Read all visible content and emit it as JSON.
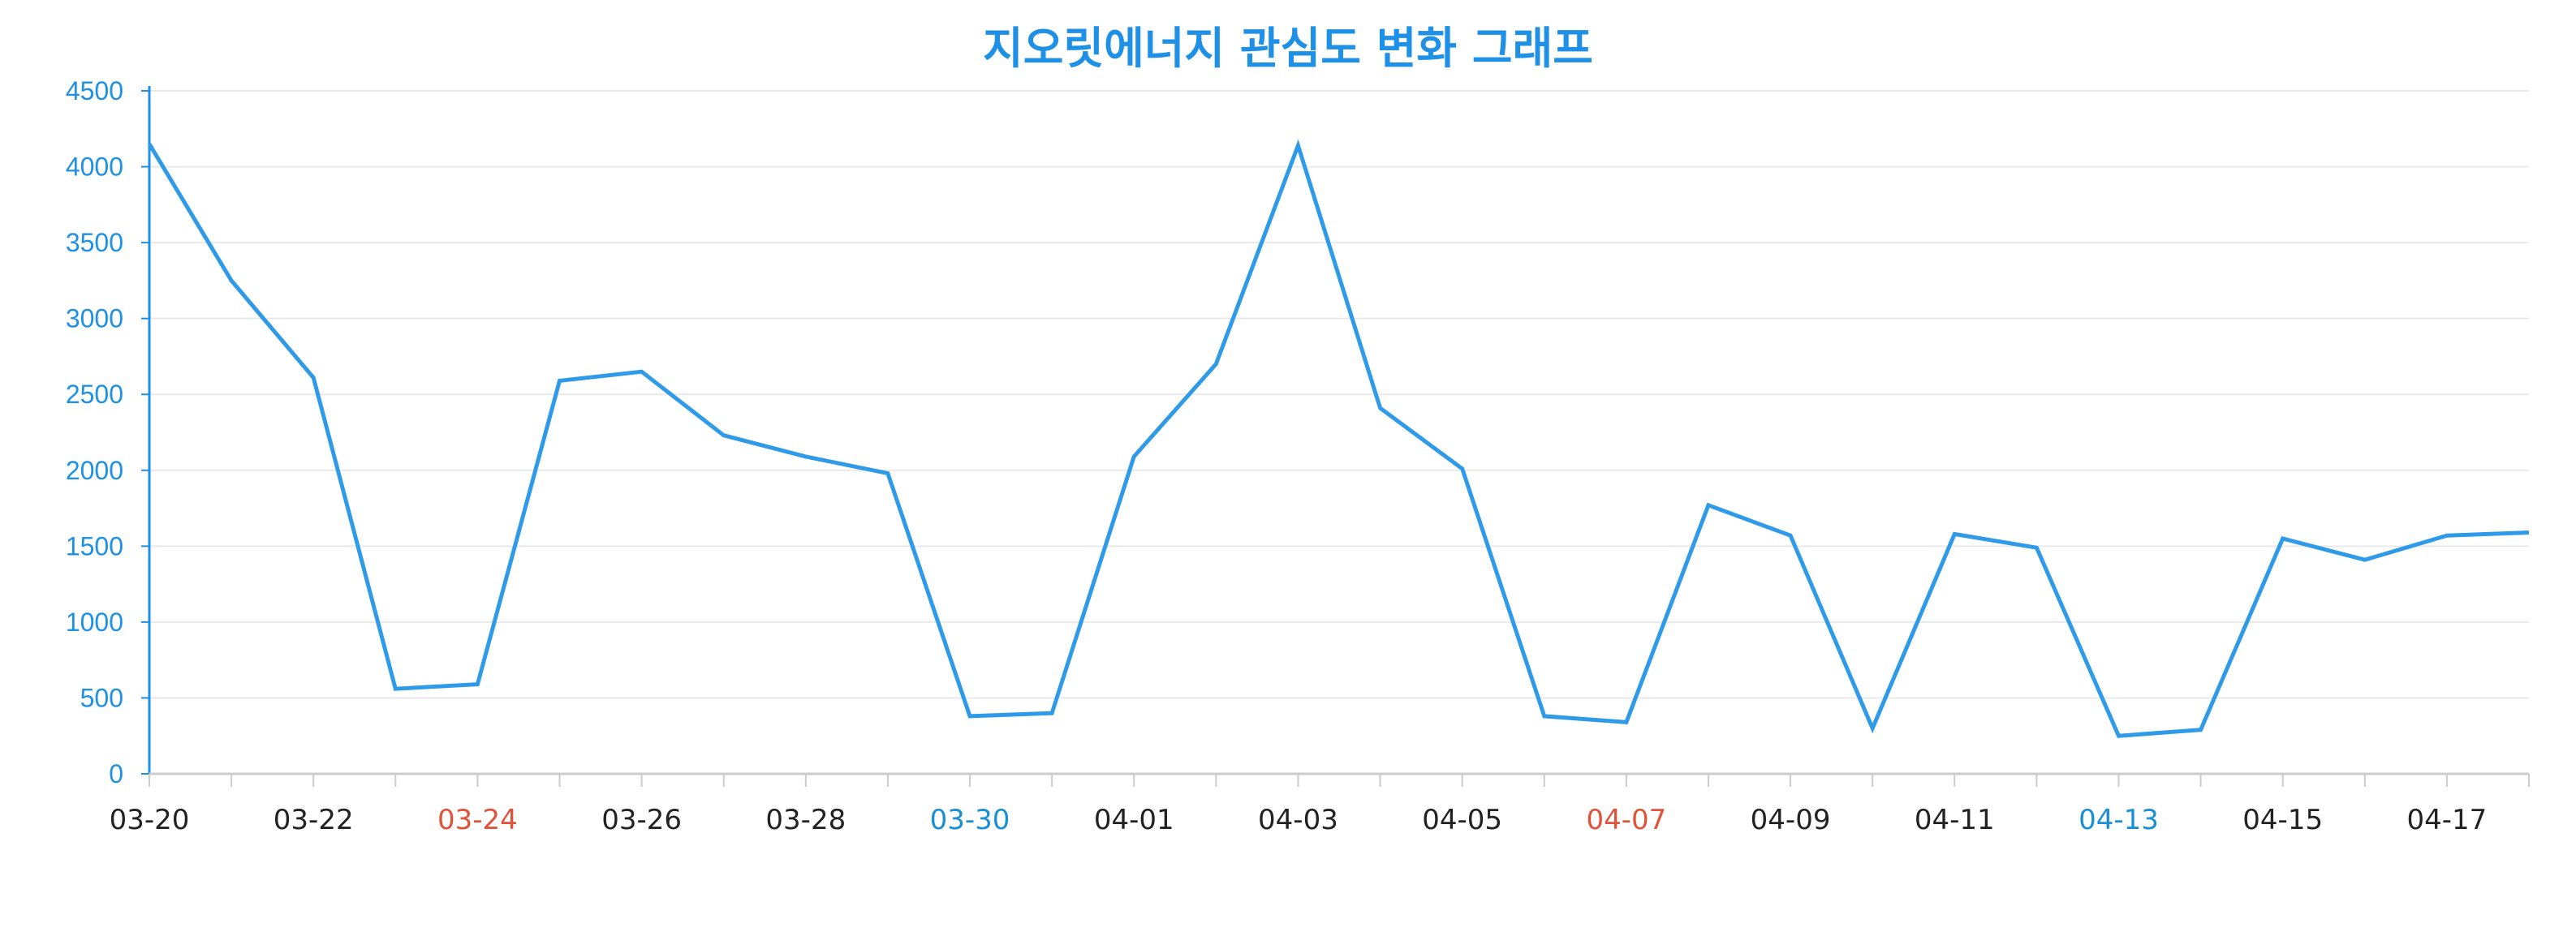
{
  "chart_data": {
    "type": "line",
    "title": "지오릿에너지 관심도 변화 그래프",
    "xlabel": "",
    "ylabel": "",
    "ylim": [
      0,
      4500
    ],
    "yticks": [
      0,
      500,
      1000,
      1500,
      2000,
      2500,
      3000,
      3500,
      4000,
      4500
    ],
    "grid": true,
    "x": [
      "03-20",
      "03-21",
      "03-22",
      "03-23",
      "03-24",
      "03-25",
      "03-26",
      "03-27",
      "03-28",
      "03-29",
      "03-30",
      "03-31",
      "04-01",
      "04-02",
      "04-03",
      "04-04",
      "04-05",
      "04-06",
      "04-07",
      "04-08",
      "04-09",
      "04-10",
      "04-11",
      "04-12",
      "04-13",
      "04-14",
      "04-15",
      "04-16",
      "04-17",
      "04-18"
    ],
    "tick_labels": [
      "03-20",
      "03-22",
      "03-24",
      "03-26",
      "03-28",
      "03-30",
      "04-01",
      "04-03",
      "04-05",
      "04-07",
      "04-09",
      "04-11",
      "04-13",
      "04-15",
      "04-17"
    ],
    "series": [
      {
        "values": [
          4150,
          3250,
          2610,
          560,
          590,
          2590,
          2650,
          2230,
          2090,
          1980,
          380,
          400,
          2090,
          2700,
          4140,
          2410,
          2010,
          380,
          340,
          1770,
          1570,
          300,
          1580,
          1490,
          250,
          290,
          1550,
          1410,
          1570,
          1590
        ]
      }
    ],
    "colors": {
      "line": "#2f9be8",
      "axis": "#1e90e6",
      "grid": "#e9e9e9",
      "tick_default": "#222222",
      "tick_saturday": "#1a8fd6",
      "tick_sunday": "#e0533b"
    },
    "tick_label_colors": {
      "03-24": "sunday",
      "03-30": "saturday",
      "04-07": "sunday",
      "04-13": "saturday"
    }
  }
}
